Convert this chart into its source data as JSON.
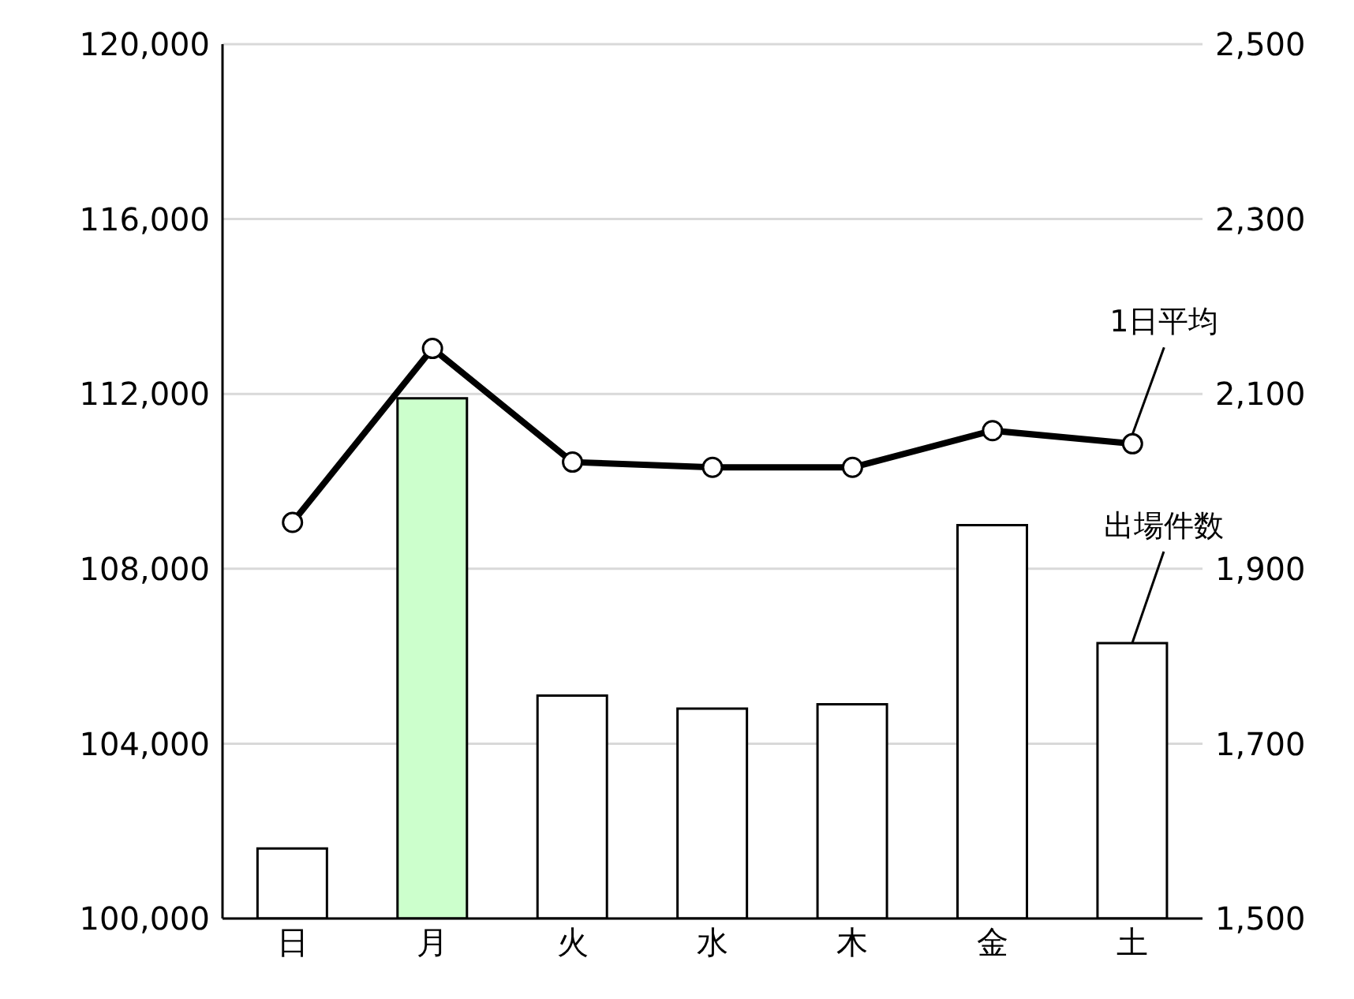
{
  "chart_data": {
    "type": "bar",
    "categories": [
      "日",
      "月",
      "火",
      "水",
      "木",
      "金",
      "土"
    ],
    "series": [
      {
        "name": "出場件数",
        "colors": [
          "#ffffff",
          "#ccffcc",
          "#ffffff",
          "#ffffff",
          "#ffffff",
          "#ffffff",
          "#ffffff"
        ],
        "values": [
          101600,
          111900,
          105100,
          104800,
          104900,
          109000,
          106300
        ]
      },
      {
        "name": "1日平均",
        "type": "line",
        "axis": "y2",
        "color": "#000000",
        "marker": "circle",
        "values": [
          1953,
          2152,
          2022,
          2016,
          2016,
          2058,
          2043
        ]
      }
    ],
    "ylim": [
      100000,
      120000
    ],
    "yticks": [
      {
        "value": 100000,
        "label": "100,000"
      },
      {
        "value": 104000,
        "label": "104,000"
      },
      {
        "value": 108000,
        "label": "108,000"
      },
      {
        "value": 112000,
        "label": "112,000"
      },
      {
        "value": 116000,
        "label": "116,000"
      },
      {
        "value": 120000,
        "label": "120,000"
      }
    ],
    "y2lim": [
      1500,
      2500
    ],
    "y2ticks": [
      {
        "value": 1500,
        "label": "1,500"
      },
      {
        "value": 1700,
        "label": "1,700"
      },
      {
        "value": 1900,
        "label": "1,900"
      },
      {
        "value": 2100,
        "label": "2,100"
      },
      {
        "value": 2300,
        "label": "2,300"
      },
      {
        "value": 2500,
        "label": "2,500"
      }
    ],
    "grid": "y"
  }
}
